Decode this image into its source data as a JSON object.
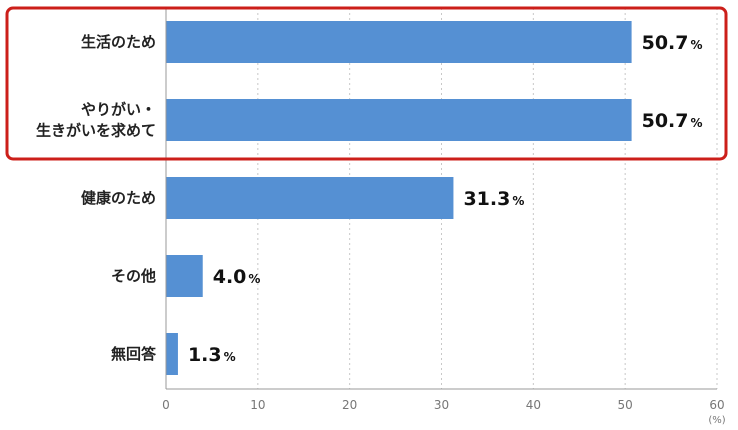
{
  "chart_data": {
    "type": "bar",
    "orientation": "horizontal",
    "categories": [
      [
        "生活のため"
      ],
      [
        "やりがい・",
        "生きがいを求めて"
      ],
      [
        "健康のため"
      ],
      [
        "その他"
      ],
      [
        "無回答"
      ]
    ],
    "values": [
      50.7,
      50.7,
      31.3,
      4.0,
      1.3
    ],
    "value_labels": [
      "50.7",
      "50.7",
      "31.3",
      "4.0",
      "1.3"
    ],
    "value_unit": "%",
    "x_ticks": [
      "0",
      "10",
      "20",
      "30",
      "40",
      "50",
      "60"
    ],
    "x_unit": "(%)",
    "xlim": [
      0,
      60
    ],
    "grid": "vertical dashed",
    "bar_color": "#5590d3",
    "highlight": {
      "color": "#cc1f1a",
      "categories": [
        0,
        1
      ]
    }
  }
}
